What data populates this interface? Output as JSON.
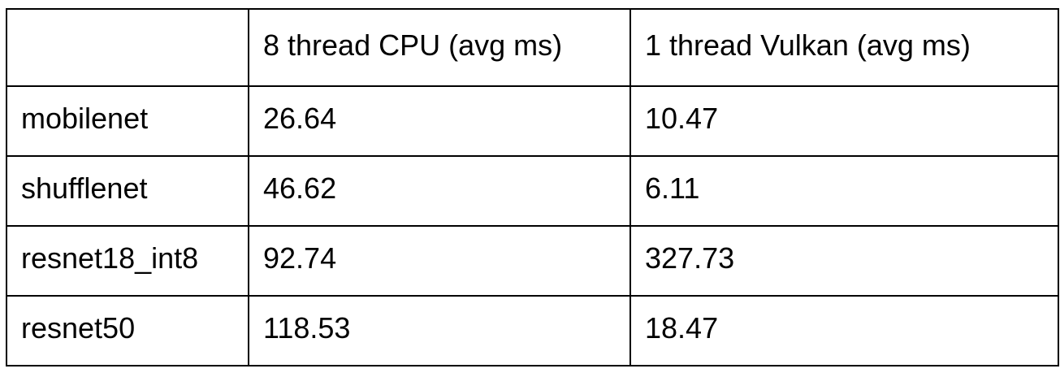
{
  "table": {
    "columns": [
      "",
      "8 thread CPU (avg ms)",
      "1 thread Vulkan (avg ms)"
    ],
    "rows": [
      [
        "mobilenet",
        "26.64",
        "10.47"
      ],
      [
        "shufflenet",
        "46.62",
        "6.11"
      ],
      [
        "resnet18_int8",
        "92.74",
        "327.73"
      ],
      [
        "resnet50",
        "118.53",
        "18.47"
      ]
    ]
  }
}
